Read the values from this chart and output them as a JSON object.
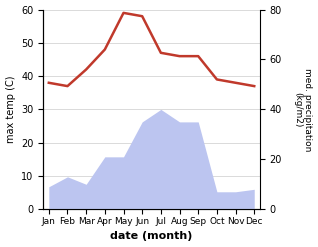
{
  "months": [
    "Jan",
    "Feb",
    "Mar",
    "Apr",
    "May",
    "Jun",
    "Jul",
    "Aug",
    "Sep",
    "Oct",
    "Nov",
    "Dec"
  ],
  "temperature": [
    38,
    37,
    42,
    48,
    59,
    58,
    47,
    46,
    46,
    39,
    38,
    37
  ],
  "precipitation": [
    9,
    13,
    10,
    21,
    21,
    35,
    40,
    35,
    35,
    7,
    7,
    8
  ],
  "temp_color": "#c0392b",
  "precip_fill_color": "#bcc5f0",
  "temp_ylim": [
    0,
    60
  ],
  "precip_ylim": [
    0,
    80
  ],
  "xlabel": "date (month)",
  "ylabel_left": "max temp (C)",
  "ylabel_right": "med. precipitation\n(kg/m2)",
  "bg_color": "#ffffff",
  "grid_color": "#cccccc"
}
